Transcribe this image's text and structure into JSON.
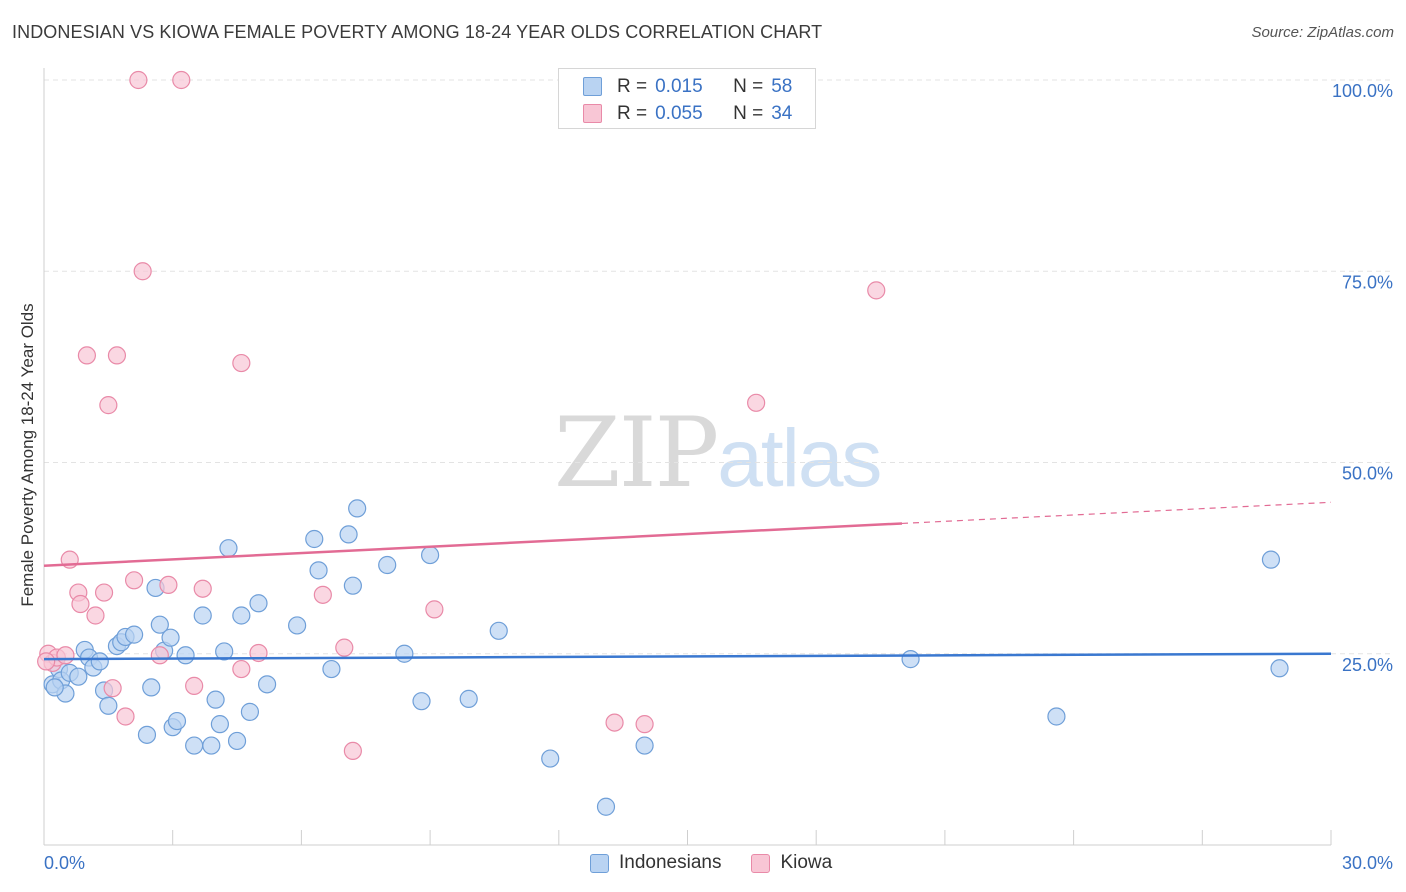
{
  "header": {
    "title": "INDONESIAN VS KIOWA FEMALE POVERTY AMONG 18-24 YEAR OLDS CORRELATION CHART",
    "source": "Source: ZipAtlas.com"
  },
  "watermark": {
    "zip": "ZIP",
    "atlas": "atlas"
  },
  "legend_top": [
    {
      "r_label": "R =",
      "r_value": "0.015",
      "n_label": "N =",
      "n_value": "58"
    },
    {
      "r_label": "R =",
      "r_value": "0.055",
      "n_label": "N =",
      "n_value": "34"
    }
  ],
  "legend_bottom": {
    "indonesians": "Indonesians",
    "kiowa": "Kiowa"
  },
  "colors": {
    "indonesians_fill": "#b9d3f2",
    "indonesians_stroke": "#6f9fd8",
    "indonesians_line": "#3a78d0",
    "kiowa_fill": "#f8c6d5",
    "kiowa_stroke": "#e98aa8",
    "kiowa_line": "#e26b94",
    "grid": "#e3e3e3",
    "tick_label": "#3a72c4"
  },
  "chart_data": {
    "type": "scatter",
    "title": "INDONESIAN VS KIOWA FEMALE POVERTY AMONG 18-24 YEAR OLDS CORRELATION CHART",
    "xlabel": "",
    "ylabel": "Female Poverty Among 18-24 Year Olds",
    "xlim": [
      0,
      30
    ],
    "ylim": [
      0,
      100
    ],
    "x_tick_labels": [
      "0.0%",
      "30.0%"
    ],
    "y_tick_labels": [
      "25.0%",
      "50.0%",
      "75.0%",
      "100.0%"
    ],
    "y_ticks": [
      25,
      50,
      75,
      100
    ],
    "grid": true,
    "legend_position": "top-center",
    "series": [
      {
        "name": "Indonesians",
        "R": 0.015,
        "N": 58,
        "trend": {
          "x": [
            0,
            30
          ],
          "y": [
            24.3,
            25.0
          ],
          "dashed_from": null
        },
        "points": [
          [
            0.2,
            21.0
          ],
          [
            0.35,
            23.0
          ],
          [
            0.4,
            21.5
          ],
          [
            0.5,
            19.8
          ],
          [
            0.6,
            22.5
          ],
          [
            0.8,
            22.0
          ],
          [
            0.95,
            25.5
          ],
          [
            1.05,
            24.5
          ],
          [
            1.15,
            23.2
          ],
          [
            1.4,
            20.2
          ],
          [
            1.5,
            18.2
          ],
          [
            1.7,
            26.0
          ],
          [
            1.8,
            26.5
          ],
          [
            1.9,
            27.2
          ],
          [
            2.1,
            27.5
          ],
          [
            2.4,
            14.4
          ],
          [
            2.5,
            20.6
          ],
          [
            2.6,
            33.6
          ],
          [
            2.7,
            28.8
          ],
          [
            2.8,
            25.4
          ],
          [
            2.95,
            27.1
          ],
          [
            3.0,
            15.4
          ],
          [
            3.1,
            16.2
          ],
          [
            3.3,
            24.8
          ],
          [
            3.5,
            13.0
          ],
          [
            3.7,
            30.0
          ],
          [
            3.9,
            13.0
          ],
          [
            4.0,
            19.0
          ],
          [
            4.1,
            15.8
          ],
          [
            4.2,
            25.3
          ],
          [
            4.3,
            38.8
          ],
          [
            4.5,
            13.6
          ],
          [
            4.6,
            30.0
          ],
          [
            4.8,
            17.4
          ],
          [
            5.0,
            31.6
          ],
          [
            5.2,
            21.0
          ],
          [
            5.9,
            28.7
          ],
          [
            6.3,
            40.0
          ],
          [
            6.4,
            35.9
          ],
          [
            6.7,
            23.0
          ],
          [
            7.1,
            40.6
          ],
          [
            7.2,
            33.9
          ],
          [
            7.3,
            44.0
          ],
          [
            8.0,
            36.6
          ],
          [
            8.4,
            25.0
          ],
          [
            8.8,
            18.8
          ],
          [
            9.0,
            37.9
          ],
          [
            9.9,
            19.1
          ],
          [
            10.6,
            28.0
          ],
          [
            11.8,
            11.3
          ],
          [
            13.1,
            5.0
          ],
          [
            14.0,
            13.0
          ],
          [
            20.2,
            24.3
          ],
          [
            23.6,
            16.8
          ],
          [
            28.6,
            37.3
          ],
          [
            28.8,
            23.1
          ],
          [
            0.25,
            20.6
          ],
          [
            1.3,
            24.0
          ]
        ]
      },
      {
        "name": "Kiowa",
        "R": 0.055,
        "N": 34,
        "trend": {
          "x": [
            0,
            30
          ],
          "y": [
            36.5,
            44.8
          ],
          "dashed_from": 20.0
        },
        "points": [
          [
            0.1,
            25.0
          ],
          [
            0.2,
            23.8
          ],
          [
            0.3,
            24.5
          ],
          [
            0.5,
            24.8
          ],
          [
            0.6,
            37.3
          ],
          [
            0.8,
            33.0
          ],
          [
            0.85,
            31.5
          ],
          [
            1.0,
            64.0
          ],
          [
            1.2,
            30.0
          ],
          [
            1.4,
            33.0
          ],
          [
            1.5,
            57.5
          ],
          [
            1.6,
            20.5
          ],
          [
            1.7,
            64.0
          ],
          [
            1.9,
            16.8
          ],
          [
            2.1,
            34.6
          ],
          [
            2.2,
            100.0
          ],
          [
            2.3,
            75.0
          ],
          [
            2.7,
            24.8
          ],
          [
            2.9,
            34.0
          ],
          [
            3.2,
            100.0
          ],
          [
            3.5,
            20.8
          ],
          [
            3.7,
            33.5
          ],
          [
            4.6,
            63.0
          ],
          [
            4.6,
            23.0
          ],
          [
            5.0,
            25.1
          ],
          [
            6.5,
            32.7
          ],
          [
            7.0,
            25.8
          ],
          [
            7.2,
            12.3
          ],
          [
            9.1,
            30.8
          ],
          [
            13.3,
            16.0
          ],
          [
            14.0,
            15.8
          ],
          [
            16.6,
            57.8
          ],
          [
            19.4,
            72.5
          ],
          [
            0.05,
            24.0
          ]
        ]
      }
    ]
  }
}
